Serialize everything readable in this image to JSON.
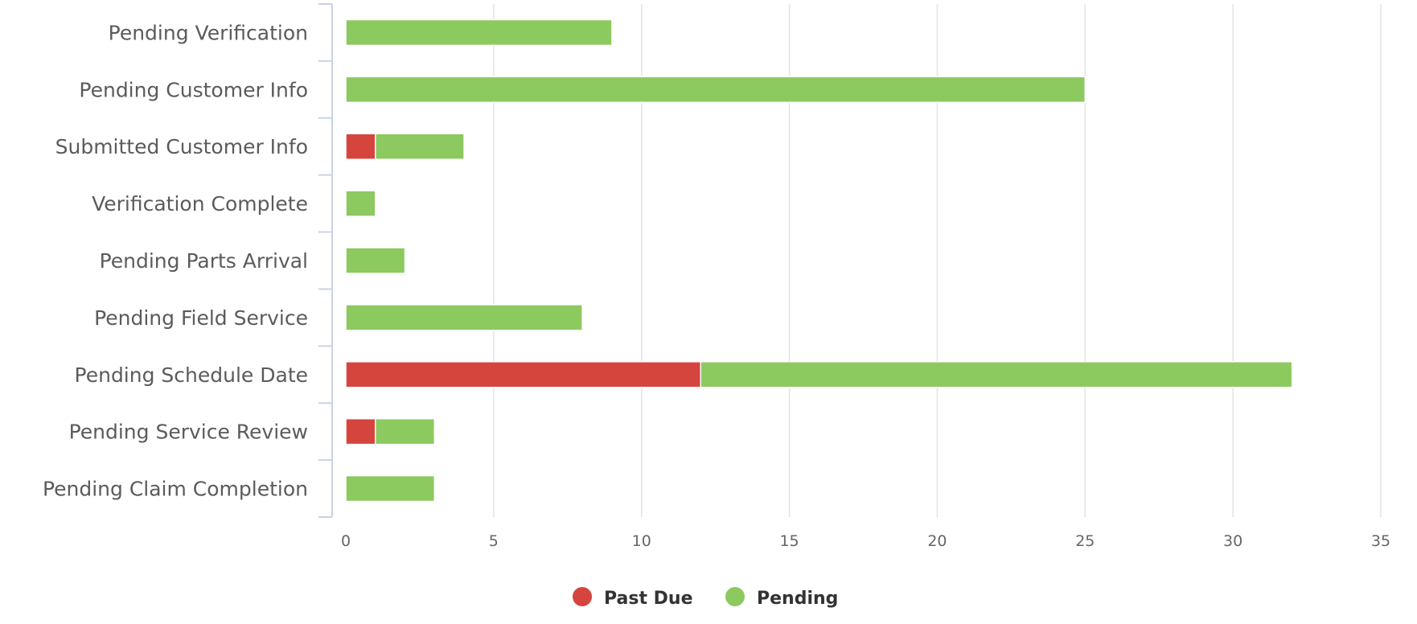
{
  "chart_data": {
    "type": "bar",
    "orientation": "horizontal",
    "stacked": true,
    "categories": [
      "Pending Verification",
      "Pending Customer Info",
      "Submitted Customer Info",
      "Verification Complete",
      "Pending Parts Arrival",
      "Pending Field Service",
      "Pending Schedule Date",
      "Pending Service Review",
      "Pending Claim Completion"
    ],
    "series": [
      {
        "name": "Past Due",
        "color": "#d6453d",
        "values": [
          0,
          0,
          1,
          0,
          0,
          0,
          12,
          1,
          0
        ]
      },
      {
        "name": "Pending",
        "color": "#8cc95e",
        "values": [
          9,
          25,
          3,
          1,
          2,
          8,
          20,
          2,
          3
        ]
      }
    ],
    "xlim": [
      0,
      35
    ],
    "xticks": [
      0,
      5,
      10,
      15,
      20,
      25,
      30,
      35
    ],
    "title": "",
    "xlabel": "",
    "ylabel": "",
    "grid": true,
    "legend_position": "bottom-center"
  }
}
